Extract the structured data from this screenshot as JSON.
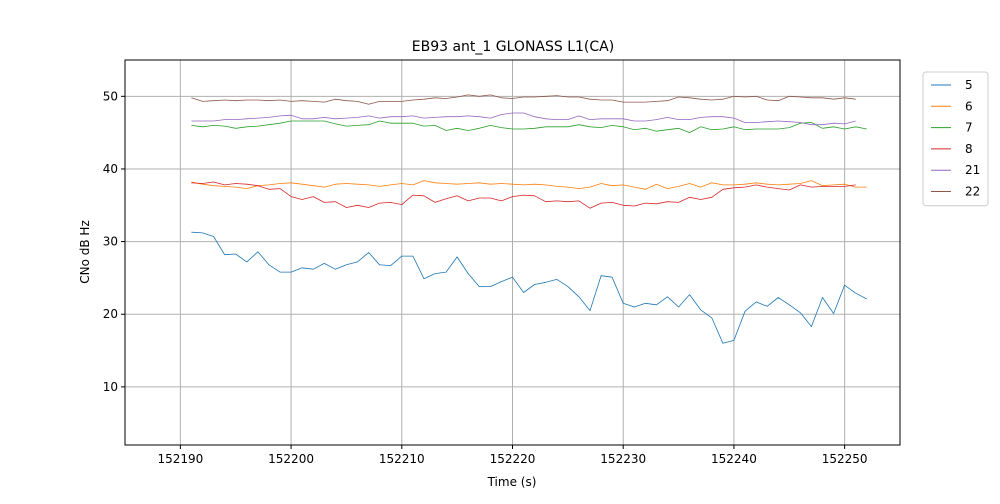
{
  "chart_data": {
    "type": "line",
    "title": "EB93 ant_1 GLONASS L1(CA)",
    "xlabel": "Time (s)",
    "ylabel": "CNo dB Hz",
    "xlim": [
      152185,
      152255
    ],
    "ylim": [
      2,
      55
    ],
    "xticks": [
      152190,
      152200,
      152210,
      152220,
      152230,
      152240,
      152250
    ],
    "yticks": [
      10,
      20,
      30,
      40,
      50
    ],
    "grid": true,
    "legend_position": "outside-top-right",
    "series": [
      {
        "name": "5",
        "color": "#1f77b4",
        "x": [
          152191,
          152192,
          152193,
          152194,
          152195,
          152196,
          152197,
          152198,
          152199,
          152200,
          152201,
          152202,
          152203,
          152204,
          152205,
          152206,
          152207,
          152208,
          152209,
          152210,
          152211,
          152212,
          152213,
          152214,
          152215,
          152216,
          152217,
          152218,
          152219,
          152220,
          152221,
          152222,
          152223,
          152224,
          152225,
          152226,
          152227,
          152228,
          152229,
          152230,
          152231,
          152232,
          152233,
          152234,
          152235,
          152236,
          152237,
          152238,
          152239,
          152240,
          152241,
          152242,
          152243,
          152244,
          152245,
          152246,
          152247,
          152248,
          152249,
          152250,
          152251,
          152252
        ],
        "values": [
          31.3,
          31.2,
          30.7,
          28.2,
          28.3,
          27.2,
          28.6,
          26.8,
          25.8,
          25.8,
          26.4,
          26.2,
          27.0,
          26.2,
          26.8,
          27.2,
          28.5,
          26.8,
          26.7,
          28.0,
          28.0,
          24.9,
          25.6,
          25.8,
          27.9,
          25.6,
          23.8,
          23.8,
          24.5,
          25.1,
          23.0,
          24.1,
          24.4,
          24.8,
          23.8,
          22.4,
          20.5,
          25.3,
          25.1,
          21.5,
          21.0,
          21.5,
          21.3,
          22.4,
          21.0,
          22.7,
          20.6,
          19.5,
          16.0,
          16.4,
          20.4,
          21.7,
          21.1,
          22.3,
          21.3,
          20.2,
          18.3,
          22.3,
          20.1,
          24.0,
          22.9,
          22.1
        ]
      },
      {
        "name": "6",
        "color": "#ff7f0e",
        "x": [
          152191,
          152192,
          152193,
          152194,
          152195,
          152196,
          152197,
          152198,
          152199,
          152200,
          152201,
          152202,
          152203,
          152204,
          152205,
          152206,
          152207,
          152208,
          152209,
          152210,
          152211,
          152212,
          152213,
          152214,
          152215,
          152216,
          152217,
          152218,
          152219,
          152220,
          152221,
          152222,
          152223,
          152224,
          152225,
          152226,
          152227,
          152228,
          152229,
          152230,
          152231,
          152232,
          152233,
          152234,
          152235,
          152236,
          152237,
          152238,
          152239,
          152240,
          152241,
          152242,
          152243,
          152244,
          152245,
          152246,
          152247,
          152248,
          152249,
          152250,
          152251,
          152252
        ],
        "values": [
          38.2,
          37.9,
          37.7,
          37.6,
          37.5,
          37.3,
          37.7,
          37.8,
          38.0,
          38.1,
          37.9,
          37.7,
          37.5,
          37.9,
          38.0,
          37.9,
          37.8,
          37.6,
          37.8,
          38.0,
          37.8,
          38.4,
          38.1,
          38.0,
          37.9,
          38.0,
          38.1,
          37.9,
          38.0,
          37.9,
          37.8,
          37.9,
          37.8,
          37.6,
          37.5,
          37.3,
          37.5,
          38.0,
          37.7,
          37.8,
          37.5,
          37.2,
          37.9,
          37.3,
          37.6,
          38.0,
          37.5,
          38.1,
          37.8,
          37.8,
          37.9,
          38.1,
          37.9,
          37.8,
          37.9,
          38.0,
          38.4,
          37.7,
          37.8,
          37.9,
          37.5,
          37.5
        ]
      },
      {
        "name": "7",
        "color": "#2ca02c",
        "x": [
          152191,
          152192,
          152193,
          152194,
          152195,
          152196,
          152197,
          152198,
          152199,
          152200,
          152201,
          152202,
          152203,
          152204,
          152205,
          152206,
          152207,
          152208,
          152209,
          152210,
          152211,
          152212,
          152213,
          152214,
          152215,
          152216,
          152217,
          152218,
          152219,
          152220,
          152221,
          152222,
          152223,
          152224,
          152225,
          152226,
          152227,
          152228,
          152229,
          152230,
          152231,
          152232,
          152233,
          152234,
          152235,
          152236,
          152237,
          152238,
          152239,
          152240,
          152241,
          152242,
          152243,
          152244,
          152245,
          152246,
          152247,
          152248,
          152249,
          152250,
          152251,
          152252
        ],
        "values": [
          46.0,
          45.8,
          46.0,
          45.9,
          45.6,
          45.8,
          45.9,
          46.1,
          46.3,
          46.6,
          46.6,
          46.6,
          46.6,
          46.2,
          45.9,
          46.0,
          46.1,
          46.6,
          46.3,
          46.3,
          46.3,
          45.9,
          46.0,
          45.3,
          45.6,
          45.3,
          45.6,
          46.0,
          45.7,
          45.5,
          45.5,
          45.6,
          45.8,
          45.8,
          45.8,
          46.1,
          45.8,
          45.7,
          46.0,
          45.8,
          45.4,
          45.6,
          45.2,
          45.4,
          45.6,
          45.0,
          45.8,
          45.4,
          45.5,
          45.8,
          45.4,
          45.5,
          45.5,
          45.5,
          45.7,
          46.3,
          46.4,
          45.6,
          45.8,
          45.5,
          45.8,
          45.5
        ]
      },
      {
        "name": "8",
        "color": "#d62728",
        "x": [
          152191,
          152192,
          152193,
          152194,
          152195,
          152196,
          152197,
          152198,
          152199,
          152200,
          152201,
          152202,
          152203,
          152204,
          152205,
          152206,
          152207,
          152208,
          152209,
          152210,
          152211,
          152212,
          152213,
          152214,
          152215,
          152216,
          152217,
          152218,
          152219,
          152220,
          152221,
          152222,
          152223,
          152224,
          152225,
          152226,
          152227,
          152228,
          152229,
          152230,
          152231,
          152232,
          152233,
          152234,
          152235,
          152236,
          152237,
          152238,
          152239,
          152240,
          152241,
          152242,
          152243,
          152244,
          152245,
          152246,
          152247,
          152248,
          152249,
          152250,
          152251
        ],
        "values": [
          38.1,
          38.0,
          38.2,
          37.8,
          38.0,
          37.9,
          37.7,
          37.2,
          37.3,
          36.2,
          35.8,
          36.2,
          35.4,
          35.5,
          34.7,
          35.0,
          34.7,
          35.3,
          35.4,
          35.1,
          36.4,
          36.3,
          35.4,
          35.9,
          36.3,
          35.6,
          36.0,
          36.0,
          35.6,
          36.2,
          36.4,
          36.3,
          35.5,
          35.6,
          35.5,
          35.6,
          34.6,
          35.3,
          35.4,
          35.0,
          34.9,
          35.3,
          35.2,
          35.5,
          35.4,
          36.1,
          35.8,
          36.1,
          37.2,
          37.4,
          37.5,
          37.8,
          37.5,
          37.3,
          37.1,
          37.8,
          37.5,
          37.6,
          37.6,
          37.6,
          37.8
        ]
      },
      {
        "name": "21",
        "color": "#9467bd",
        "x": [
          152191,
          152192,
          152193,
          152194,
          152195,
          152196,
          152197,
          152198,
          152199,
          152200,
          152201,
          152202,
          152203,
          152204,
          152205,
          152206,
          152207,
          152208,
          152209,
          152210,
          152211,
          152212,
          152213,
          152214,
          152215,
          152216,
          152217,
          152218,
          152219,
          152220,
          152221,
          152222,
          152223,
          152224,
          152225,
          152226,
          152227,
          152228,
          152229,
          152230,
          152231,
          152232,
          152233,
          152234,
          152235,
          152236,
          152237,
          152238,
          152239,
          152240,
          152241,
          152242,
          152243,
          152244,
          152245,
          152246,
          152247,
          152248,
          152249,
          152250,
          152251
        ],
        "values": [
          46.6,
          46.6,
          46.6,
          46.8,
          46.8,
          46.9,
          47.0,
          47.1,
          47.3,
          47.4,
          46.9,
          46.9,
          47.1,
          46.9,
          47.0,
          47.1,
          47.3,
          47.0,
          47.2,
          47.2,
          47.3,
          47.0,
          47.1,
          47.2,
          47.2,
          47.3,
          47.2,
          47.0,
          47.5,
          47.7,
          47.7,
          47.2,
          46.9,
          46.8,
          46.8,
          47.3,
          46.8,
          46.9,
          46.9,
          46.9,
          46.6,
          46.6,
          46.8,
          47.1,
          46.8,
          46.8,
          47.1,
          47.2,
          47.2,
          47.0,
          46.4,
          46.4,
          46.5,
          46.6,
          46.5,
          46.4,
          46.1,
          46.1,
          46.3,
          46.2,
          46.6
        ]
      },
      {
        "name": "22",
        "color": "#8c564b",
        "x": [
          152191,
          152192,
          152193,
          152194,
          152195,
          152196,
          152197,
          152198,
          152199,
          152200,
          152201,
          152202,
          152203,
          152204,
          152205,
          152206,
          152207,
          152208,
          152209,
          152210,
          152211,
          152212,
          152213,
          152214,
          152215,
          152216,
          152217,
          152218,
          152219,
          152220,
          152221,
          152222,
          152223,
          152224,
          152225,
          152226,
          152227,
          152228,
          152229,
          152230,
          152231,
          152232,
          152233,
          152234,
          152235,
          152236,
          152237,
          152238,
          152239,
          152240,
          152241,
          152242,
          152243,
          152244,
          152245,
          152246,
          152247,
          152248,
          152249,
          152250,
          152251
        ],
        "values": [
          49.8,
          49.3,
          49.4,
          49.5,
          49.4,
          49.5,
          49.5,
          49.4,
          49.5,
          49.3,
          49.4,
          49.3,
          49.2,
          49.6,
          49.4,
          49.3,
          48.9,
          49.3,
          49.3,
          49.3,
          49.5,
          49.6,
          49.8,
          49.7,
          49.9,
          50.2,
          50.0,
          50.2,
          49.8,
          49.7,
          49.9,
          49.9,
          50.0,
          50.1,
          49.9,
          49.9,
          49.6,
          49.5,
          49.5,
          49.2,
          49.2,
          49.2,
          49.3,
          49.4,
          49.9,
          49.8,
          49.6,
          49.5,
          49.6,
          50.0,
          49.9,
          50.0,
          49.5,
          49.4,
          50.0,
          49.9,
          49.8,
          49.8,
          49.6,
          49.8,
          49.6
        ]
      }
    ]
  }
}
